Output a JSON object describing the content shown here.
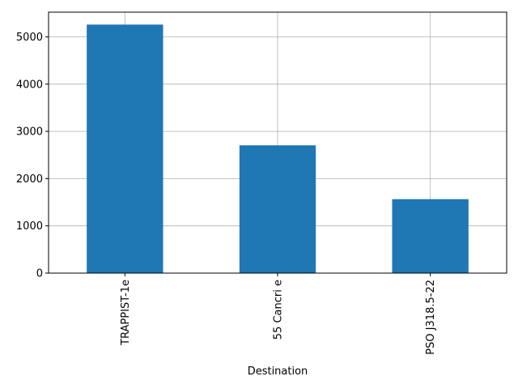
{
  "chart_data": {
    "type": "bar",
    "categories": [
      "TRAPPIST-1e",
      "55 Cancri e",
      "PSO J318.5-22"
    ],
    "values": [
      5260,
      2705,
      1565
    ],
    "xlabel": "Destination",
    "ylabel": "",
    "ylim": [
      0,
      5523
    ],
    "yticks": [
      0,
      1000,
      2000,
      3000,
      4000,
      5000
    ],
    "grid": true,
    "bar_color": "#1f77b4",
    "grid_color": "#b0b0b0"
  }
}
